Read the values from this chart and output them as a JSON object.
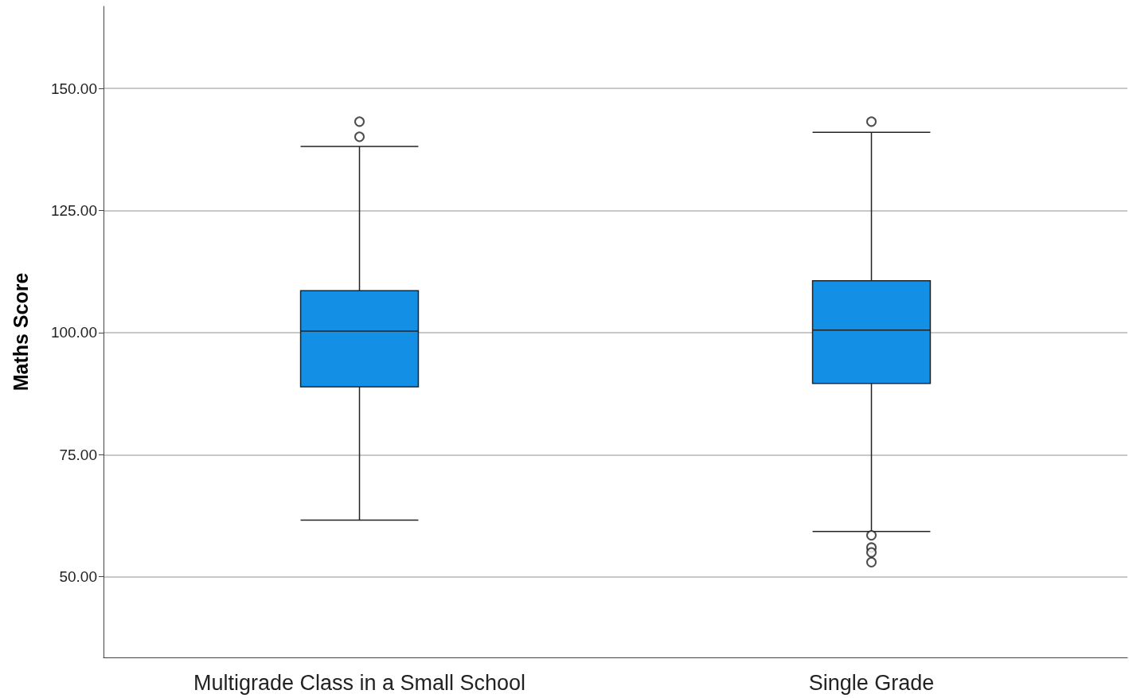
{
  "chart_data": {
    "type": "box",
    "ylabel": "Maths Score",
    "categories": [
      "Multigrade Class in a Small School",
      "Single Grade"
    ],
    "series": [
      {
        "color": "#1390e6",
        "boxes": [
          {
            "low": 61.6,
            "q1": 88.9,
            "median": 100.3,
            "q3": 108.6,
            "high": 138.1,
            "outliers": [
              140.1,
              143.2
            ]
          },
          {
            "low": 59.3,
            "q1": 89.6,
            "median": 100.5,
            "q3": 110.6,
            "high": 141.0,
            "outliers": [
              143.2,
              58.5,
              56,
              55,
              53
            ]
          }
        ]
      }
    ],
    "ylim": [
      33.5,
      166.8
    ],
    "yticks": [
      {
        "value": 50,
        "label": "50.00"
      },
      {
        "value": 75,
        "label": "75.00"
      },
      {
        "value": 100,
        "label": "100.00"
      },
      {
        "value": 125,
        "label": "125.00"
      },
      {
        "value": 150,
        "label": "150.00"
      }
    ],
    "grid": "y",
    "marker": "circle"
  }
}
